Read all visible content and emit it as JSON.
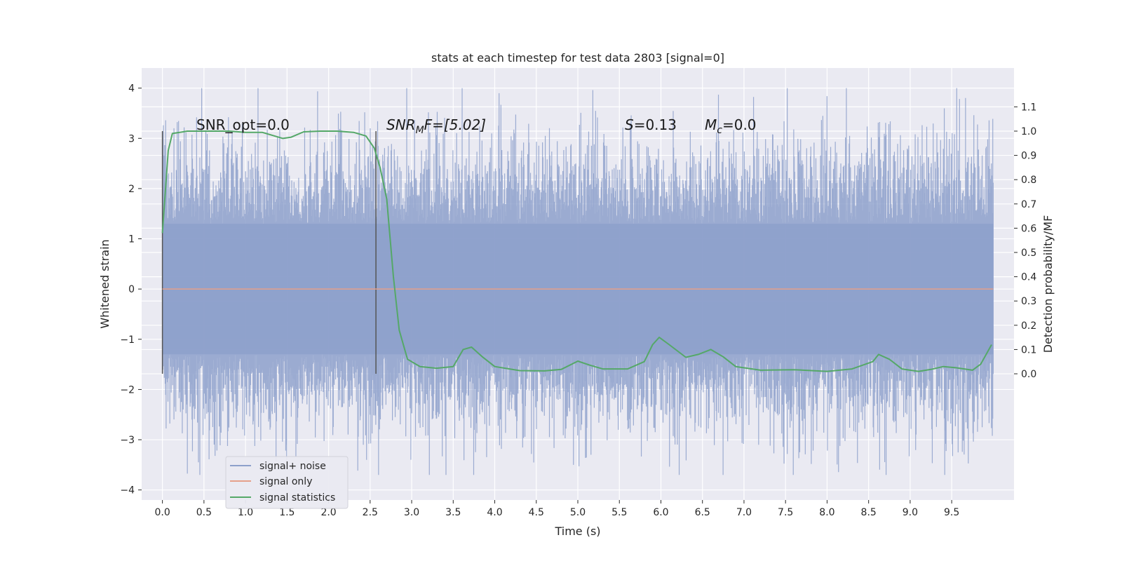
{
  "chart_data": {
    "type": "line",
    "title": "stats at each timestep for test data 2803 [signal=0]",
    "xlabel": "Time (s)",
    "ylabel": "Whitened strain",
    "ylabel_right": "Detection probability/MF",
    "xlim": [
      -0.25,
      10.25
    ],
    "ylim": [
      -4.2,
      4.4
    ],
    "ylim_right": [
      -0.52,
      1.26
    ],
    "x_ticks": [
      "0.0",
      "0.5",
      "1.0",
      "1.5",
      "2.0",
      "2.5",
      "3.0",
      "3.5",
      "4.0",
      "4.5",
      "5.0",
      "5.5",
      "6.0",
      "6.5",
      "7.0",
      "7.5",
      "8.0",
      "8.5",
      "9.0",
      "9.5"
    ],
    "y_ticks": [
      "−4",
      "−3",
      "−2",
      "−1",
      "0",
      "1",
      "2",
      "3",
      "4"
    ],
    "y_ticks_right": [
      "0.0",
      "0.1",
      "0.2",
      "0.3",
      "0.4",
      "0.5",
      "0.6",
      "0.7",
      "0.8",
      "0.9",
      "1.0",
      "1.1"
    ],
    "grid": true,
    "legend_position": "lower-left",
    "vlines": [
      0.0,
      2.57
    ],
    "annotations": [
      {
        "text": "SNR_opt=0.0"
      },
      {
        "text": "SNR",
        "sub": "M",
        "rest": "F=[5.02]"
      },
      {
        "text": "S",
        "rest": "=0.13"
      },
      {
        "text": "M",
        "sub": "c",
        "rest": "=0.0"
      }
    ],
    "series": [
      {
        "name": "signal+ noise",
        "color": "#8da0cb",
        "description_range": [
          0,
          10
        ],
        "typical_band": [
          -1.3,
          1.3
        ],
        "extremes": [
          -3.7,
          4.0
        ]
      },
      {
        "name": "signal only",
        "color": "#e5a08a",
        "x": [
          0,
          10
        ],
        "y": [
          0,
          0
        ]
      },
      {
        "name": "signal statistics",
        "color": "#55a868",
        "axis": "right",
        "x": [
          0.0,
          0.07,
          0.12,
          0.3,
          0.5,
          0.8,
          1.0,
          1.2,
          1.35,
          1.45,
          1.55,
          1.7,
          1.9,
          2.1,
          2.3,
          2.45,
          2.55,
          2.62,
          2.7,
          2.78,
          2.85,
          2.95,
          3.1,
          3.3,
          3.5,
          3.62,
          3.72,
          3.85,
          4.0,
          4.3,
          4.6,
          4.8,
          5.0,
          5.15,
          5.3,
          5.6,
          5.8,
          5.9,
          5.98,
          6.1,
          6.3,
          6.45,
          6.6,
          6.75,
          6.9,
          7.2,
          7.6,
          8.0,
          8.3,
          8.55,
          8.62,
          8.75,
          8.9,
          9.1,
          9.25,
          9.4,
          9.55,
          9.75,
          9.85,
          9.98
        ],
        "y": [
          0.58,
          0.92,
          0.99,
          1.0,
          1.0,
          1.0,
          0.995,
          0.995,
          0.98,
          0.97,
          0.975,
          0.997,
          1.0,
          1.0,
          0.995,
          0.98,
          0.93,
          0.85,
          0.72,
          0.4,
          0.18,
          0.06,
          0.03,
          0.023,
          0.03,
          0.1,
          0.11,
          0.07,
          0.03,
          0.013,
          0.012,
          0.018,
          0.052,
          0.035,
          0.02,
          0.02,
          0.05,
          0.12,
          0.15,
          0.12,
          0.068,
          0.08,
          0.1,
          0.07,
          0.03,
          0.015,
          0.017,
          0.01,
          0.02,
          0.05,
          0.08,
          0.06,
          0.02,
          0.01,
          0.018,
          0.03,
          0.025,
          0.015,
          0.04,
          0.12
        ]
      }
    ]
  }
}
